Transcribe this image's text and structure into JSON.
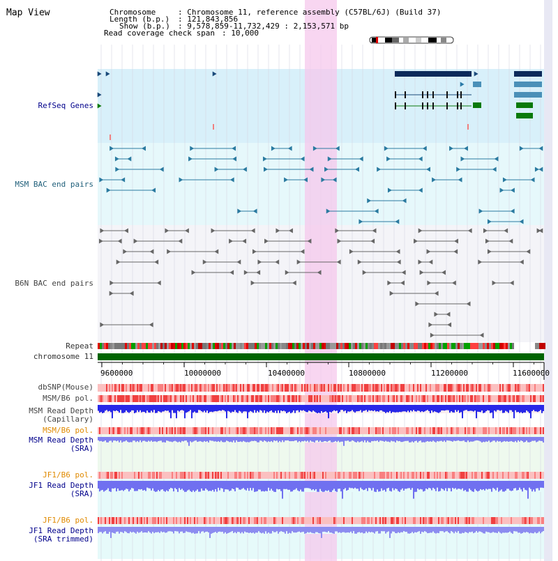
{
  "page": {
    "title": "Map View"
  },
  "info": {
    "chromosome_key": "Chromosome",
    "chromosome_val": ": Chromosome 11, reference assembly (C57BL/6J) (Build 37)",
    "length_key": "Length (b.p.)",
    "length_val": ": 121,843,856",
    "show_key": "Show (b.p.)",
    "show_val": ": 9,578,859-11,732,429 : 2,153,571 bp",
    "coverage_key": "Read coverage check span",
    "coverage_val": ": 10,000"
  },
  "tracks": {
    "refseq": "RefSeq Genes",
    "msm_bac": "MSM BAC end pairs",
    "b6n_bac": "B6N BAC end pairs",
    "repeat": "Repeat",
    "chromosome": "chromosome 11",
    "dbsnp": "dbSNP(Mouse)",
    "msm_b6_pol_1": "MSM/B6 pol.",
    "msm_read_depth_cap_1": "MSM Read Depth",
    "msm_read_depth_cap_2": "(Capillary)",
    "msm_b6_pol_2": "MSM/B6 pol.",
    "msm_read_depth_sra_1": "MSM Read Depth",
    "msm_read_depth_sra_2": "(SRA)",
    "jf1_b6_pol_1": "JF1/B6 pol.",
    "jf1_read_depth_sra_1": "JF1 Read Depth",
    "jf1_read_depth_sra_2": "(SRA)",
    "jf1_b6_pol_2": "JF1/B6 pol.",
    "jf1_read_depth_trim_1": "JF1 Read Depth",
    "jf1_read_depth_trim_2": "(SRA trimmed)"
  },
  "axis": {
    "ticks": [
      "9600000",
      "10000000",
      "10400000",
      "10800000",
      "11200000",
      "11600000"
    ]
  },
  "colors": {
    "refseq_bg": "#d8f0fa",
    "msm_bg": "#e6f8fb",
    "b6n_bg": "#f4f4f8",
    "highlight": "#f6d4f0",
    "chromosome": "#006400",
    "depth_blue": "#2020e0",
    "depth_light": "#7a7af0"
  }
}
